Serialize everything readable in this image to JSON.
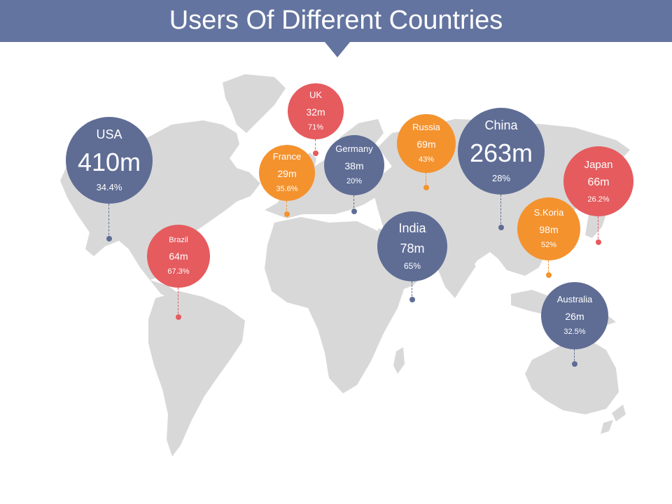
{
  "title": "Users Of Different Countries",
  "colors": {
    "header": "#6474a0",
    "slate": "#5f6d95",
    "red": "#e55b5e",
    "orange": "#f4922e",
    "land": "#d8d8d8"
  },
  "markers": [
    {
      "id": "usa",
      "country": "USA",
      "users": "410m",
      "share": "34.4%",
      "color": "slate"
    },
    {
      "id": "uk",
      "country": "UK",
      "users": "32m",
      "share": "71%",
      "color": "red"
    },
    {
      "id": "france",
      "country": "France",
      "users": "29m",
      "share": "35.6%",
      "color": "orange"
    },
    {
      "id": "germany",
      "country": "Germany",
      "users": "38m",
      "share": "20%",
      "color": "slate"
    },
    {
      "id": "russia",
      "country": "Russia",
      "users": "69m",
      "share": "43%",
      "color": "orange"
    },
    {
      "id": "china",
      "country": "China",
      "users": "263m",
      "share": "28%",
      "color": "slate"
    },
    {
      "id": "japan",
      "country": "Japan",
      "users": "66m",
      "share": "26.2%",
      "color": "red"
    },
    {
      "id": "brazil",
      "country": "Brazil",
      "users": "64m",
      "share": "67.3%",
      "color": "red"
    },
    {
      "id": "india",
      "country": "India",
      "users": "78m",
      "share": "65%",
      "color": "slate"
    },
    {
      "id": "skorea",
      "country": "S.Koria",
      "users": "98m",
      "share": "52%",
      "color": "orange"
    },
    {
      "id": "australia",
      "country": "Australia",
      "users": "26m",
      "share": "32.5%",
      "color": "slate"
    }
  ]
}
